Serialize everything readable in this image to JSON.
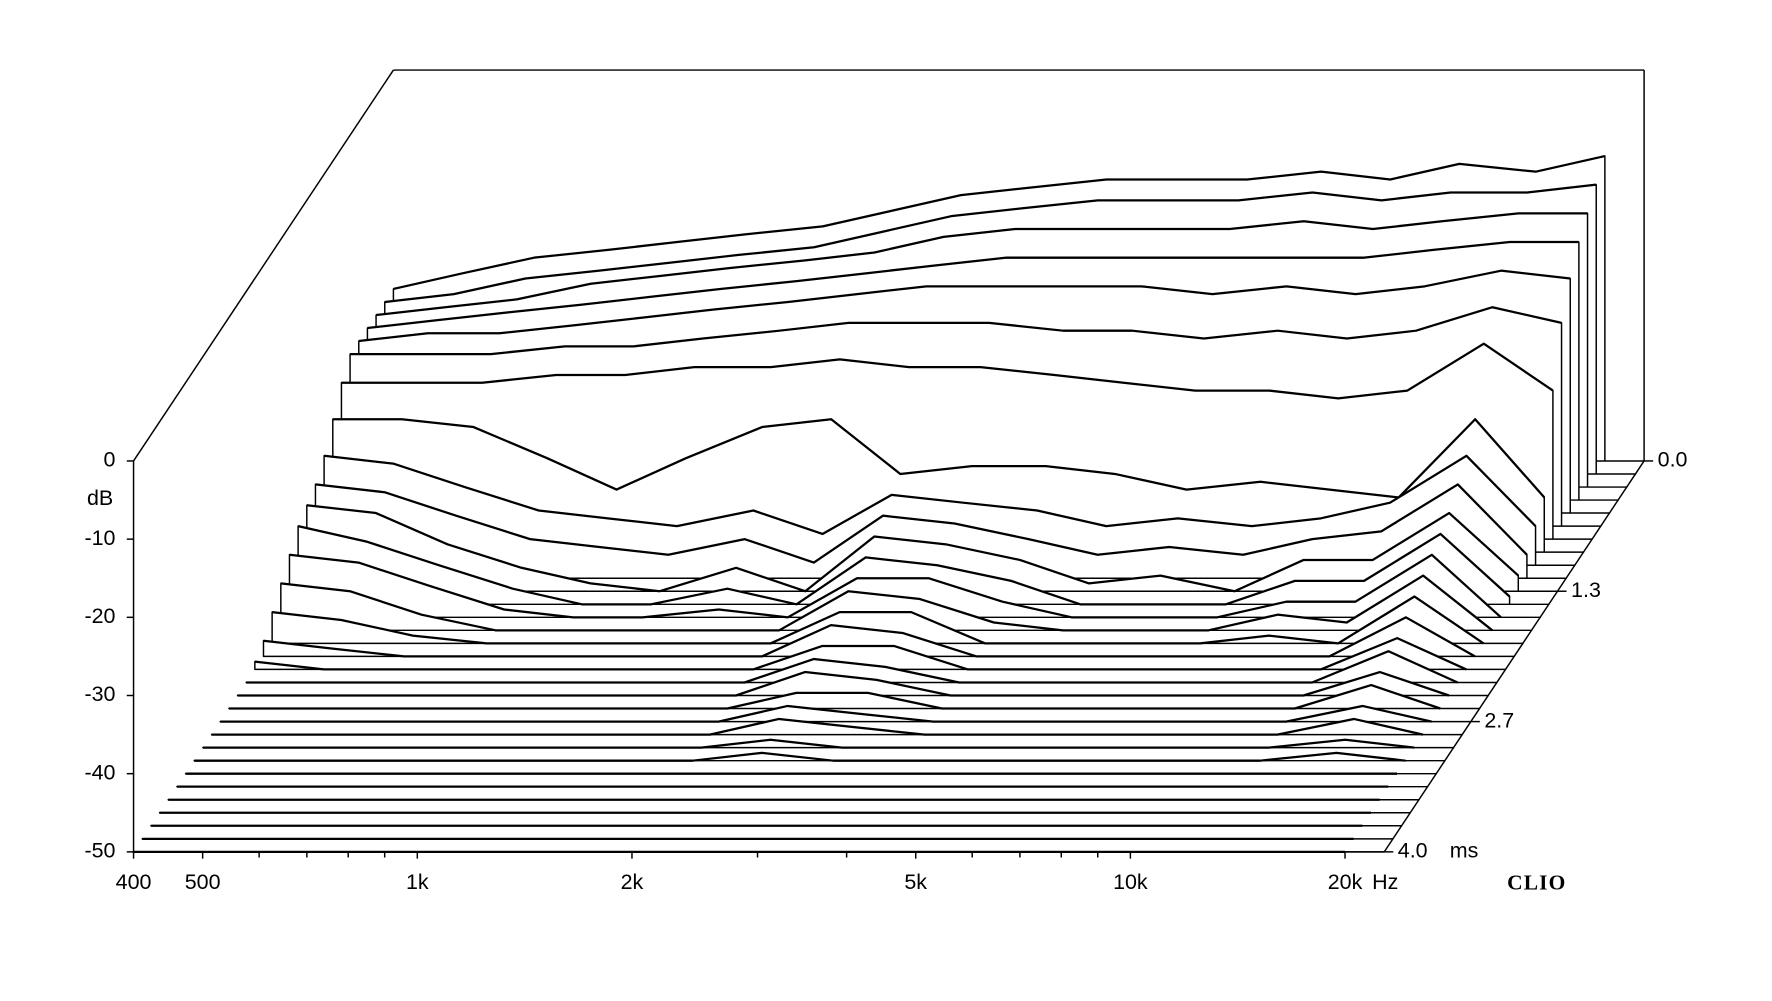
{
  "chart_data": {
    "type": "waterfall",
    "x": [
      400,
      500,
      630,
      800,
      1000,
      1250,
      1600,
      2000,
      2500,
      3150,
      4000,
      5000,
      6300,
      8000,
      10000,
      12500,
      16000,
      20000
    ],
    "xlim": [
      400,
      22700
    ],
    "xticks": [
      400,
      500,
      {
        "value": 1000,
        "label": "1k"
      },
      {
        "value": 2000,
        "label": "2k"
      },
      {
        "value": 5000,
        "label": "5k"
      },
      {
        "value": 10000,
        "label": "10k"
      },
      {
        "value": 20000,
        "label": "20k"
      }
    ],
    "xminorticks": [
      600,
      700,
      800,
      900,
      3000,
      4000,
      6000,
      7000,
      8000,
      9000
    ],
    "x_unit": "Hz",
    "ylim": [
      -50,
      0
    ],
    "yticks": [
      0,
      -10,
      -20,
      -30,
      -40,
      -50
    ],
    "y_label": "dB",
    "zlim": [
      0,
      4
    ],
    "zticks": [
      {
        "value": 0,
        "label": "0.0"
      },
      {
        "value": 1.333,
        "label": "1.3"
      },
      {
        "value": 2.667,
        "label": "2.7"
      },
      {
        "value": 4,
        "label": "4.0"
      }
    ],
    "z_unit": "ms",
    "z": [
      0,
      0.133,
      0.267,
      0.4,
      0.533,
      0.667,
      0.8,
      0.933,
      1.067,
      1.2,
      1.333,
      1.467,
      1.6,
      1.733,
      1.867,
      2,
      2.133,
      2.267,
      2.4,
      2.533,
      2.667,
      2.8,
      2.933,
      3.067,
      3.2,
      3.333,
      3.467,
      3.6,
      3.733,
      3.867,
      4
    ],
    "color": "#000000",
    "brand": "CLIO",
    "series": [
      {
        "values": [
          -28,
          -26,
          -24,
          -23,
          -22,
          -21,
          -20,
          -18,
          -16,
          -15,
          -14,
          -14,
          -14,
          -13,
          -14,
          -12,
          -13,
          -11
        ]
      },
      {
        "values": [
          -28,
          -27,
          -25,
          -24,
          -23,
          -22,
          -21,
          -19,
          -17,
          -16,
          -15,
          -15,
          -15,
          -14,
          -15,
          -14,
          -14,
          -13
        ]
      },
      {
        "values": [
          -28,
          -27,
          -26,
          -24,
          -23,
          -22,
          -21,
          -20,
          -18,
          -17,
          -17,
          -17,
          -17,
          -16,
          -17,
          -16,
          -15,
          -15
        ]
      },
      {
        "values": [
          -28,
          -27,
          -26,
          -25,
          -24,
          -23,
          -22,
          -21,
          -20,
          -19,
          -19,
          -19,
          -19,
          -19,
          -19,
          -18,
          -17,
          -17
        ]
      },
      {
        "values": [
          -28,
          -27,
          -27,
          -26,
          -25,
          -24,
          -23,
          -22,
          -21,
          -21,
          -21,
          -21,
          -22,
          -21,
          -22,
          -21,
          -19,
          -20
        ]
      },
      {
        "values": [
          -28,
          -28,
          -28,
          -27,
          -27,
          -26,
          -25,
          -24,
          -24,
          -24,
          -25,
          -25,
          -26,
          -25,
          -26,
          -25,
          -22,
          -24
        ]
      },
      {
        "values": [
          -30,
          -30,
          -30,
          -29,
          -29,
          -28,
          -28,
          -27,
          -28,
          -28,
          -29,
          -30,
          -31,
          -31,
          -32,
          -31,
          -25,
          -31
        ]
      },
      {
        "values": [
          -33,
          -33,
          -34,
          -38,
          -42,
          -38,
          -34,
          -33,
          -40,
          -39,
          -39,
          -40,
          -42,
          -41,
          -42,
          -43,
          -33,
          -43
        ]
      },
      {
        "values": [
          -36,
          -37,
          -40,
          -43,
          -44,
          -45,
          -43,
          -46,
          -41,
          -42,
          -43,
          -45,
          -44,
          -45,
          -44,
          -42,
          -36,
          -45
        ]
      },
      {
        "values": [
          -38,
          -39,
          -42,
          -45,
          -46,
          -47,
          -45,
          -48,
          -42,
          -43,
          -45,
          -47,
          -46,
          -47,
          -45,
          -44,
          -38,
          -47
        ]
      },
      {
        "values": [
          -39,
          -40,
          -44,
          -47,
          -49,
          -50,
          -47,
          -50,
          -43,
          -44,
          -46,
          -49,
          -48,
          -50,
          -46,
          -46,
          -40,
          -48
        ]
      },
      {
        "values": [
          -40,
          -42,
          -45,
          -48,
          -50,
          -50,
          -48,
          -50,
          -44,
          -45,
          -47,
          -50,
          -50,
          -50,
          -47,
          -47,
          -41,
          -49
        ]
      },
      {
        "values": [
          -42,
          -43,
          -46,
          -49,
          -50,
          -50,
          -49,
          -50,
          -45,
          -45,
          -48,
          -50,
          -50,
          -50,
          -48,
          -48,
          -42,
          -50
        ]
      },
      {
        "values": [
          -44,
          -45,
          -48,
          -50,
          -50,
          -50,
          -50,
          -50,
          -45,
          -46,
          -49,
          -50,
          -50,
          -50,
          -48,
          -49,
          -43,
          -50
        ]
      },
      {
        "values": [
          -46,
          -47,
          -49,
          -50,
          -50,
          -50,
          -50,
          -50,
          -46,
          -46,
          -50,
          -50,
          -50,
          -50,
          -49,
          -50,
          -44,
          -50
        ]
      },
      {
        "values": [
          -48,
          -49,
          -50,
          -50,
          -50,
          -50,
          -50,
          -50,
          -46,
          -47,
          -50,
          -50,
          -50,
          -50,
          -50,
          -50,
          -45,
          -50
        ]
      },
      {
        "values": [
          -49,
          -50,
          -50,
          -50,
          -50,
          -50,
          -50,
          -50,
          -47,
          -47,
          -50,
          -50,
          -50,
          -50,
          -50,
          -50,
          -46,
          -50
        ]
      },
      {
        "values": [
          -50,
          -50,
          -50,
          -50,
          -50,
          -50,
          -50,
          -50,
          -47,
          -48,
          -50,
          -50,
          -50,
          -50,
          -50,
          -50,
          -46,
          -50
        ]
      },
      {
        "values": [
          -50,
          -50,
          -50,
          -50,
          -50,
          -50,
          -50,
          -50,
          -47,
          -48,
          -50,
          -50,
          -50,
          -50,
          -50,
          -50,
          -47,
          -50
        ]
      },
      {
        "values": [
          -50,
          -50,
          -50,
          -50,
          -50,
          -50,
          -50,
          -50,
          -48,
          -48,
          -50,
          -50,
          -50,
          -50,
          -50,
          -50,
          -47,
          -50
        ]
      },
      {
        "values": [
          -50,
          -50,
          -50,
          -50,
          -50,
          -50,
          -50,
          -50,
          -48,
          -49,
          -50,
          -50,
          -50,
          -50,
          -50,
          -50,
          -48,
          -50
        ]
      },
      {
        "values": [
          -50,
          -50,
          -50,
          -50,
          -50,
          -50,
          -50,
          -50,
          -48,
          -49,
          -50,
          -50,
          -50,
          -50,
          -50,
          -50,
          -48,
          -50
        ]
      },
      {
        "values": [
          -50,
          -50,
          -50,
          -50,
          -50,
          -50,
          -50,
          -50,
          -49,
          -50,
          -50,
          -50,
          -50,
          -50,
          -50,
          -50,
          -49,
          -50
        ]
      },
      {
        "values": [
          -50,
          -50,
          -50,
          -50,
          -50,
          -50,
          -50,
          -50,
          -49,
          -50,
          -50,
          -50,
          -50,
          -50,
          -50,
          -50,
          -49,
          -50
        ]
      },
      {
        "values": [
          -50,
          -50,
          -50,
          -50,
          -50,
          -50,
          -50,
          -50,
          -50,
          -50,
          -50,
          -50,
          -50,
          -50,
          -50,
          -50,
          -50,
          -50
        ]
      },
      {
        "values": [
          -50,
          -50,
          -50,
          -50,
          -50,
          -50,
          -50,
          -50,
          -50,
          -50,
          -50,
          -50,
          -50,
          -50,
          -50,
          -50,
          -50,
          -50
        ]
      },
      {
        "values": [
          -50,
          -50,
          -50,
          -50,
          -50,
          -50,
          -50,
          -50,
          -50,
          -50,
          -50,
          -50,
          -50,
          -50,
          -50,
          -50,
          -50,
          -50
        ]
      },
      {
        "values": [
          -50,
          -50,
          -50,
          -50,
          -50,
          -50,
          -50,
          -50,
          -50,
          -50,
          -50,
          -50,
          -50,
          -50,
          -50,
          -50,
          -50,
          -50
        ]
      },
      {
        "values": [
          -50,
          -50,
          -50,
          -50,
          -50,
          -50,
          -50,
          -50,
          -50,
          -50,
          -50,
          -50,
          -50,
          -50,
          -50,
          -50,
          -50,
          -50
        ]
      },
      {
        "values": [
          -50,
          -50,
          -50,
          -50,
          -50,
          -50,
          -50,
          -50,
          -50,
          -50,
          -50,
          -50,
          -50,
          -50,
          -50,
          -50,
          -50,
          -50
        ]
      },
      {
        "values": [
          -50,
          -50,
          -50,
          -50,
          -50,
          -50,
          -50,
          -50,
          -50,
          -50,
          -50,
          -50,
          -50,
          -50,
          -50,
          -50,
          -50,
          -50
        ]
      }
    ]
  }
}
